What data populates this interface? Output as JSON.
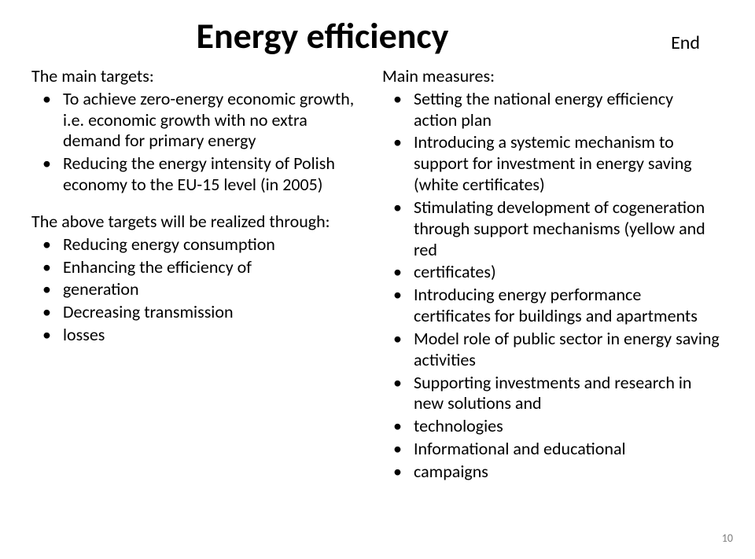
{
  "title": "Energy efficiency",
  "end_label": "End",
  "left": {
    "targets_lead": "The main targets:",
    "targets": [
      "To achieve zero-energy economic growth, i.e. economic growth with no extra demand for primary energy",
      "Reducing the energy intensity of Polish economy to the EU-15 level (in 2005)"
    ],
    "realized_lead": "The above targets will be realized through:",
    "realized": [
      "Reducing energy consumption",
      "Enhancing the efficiency of",
      "generation",
      "Decreasing transmission",
      "losses"
    ]
  },
  "right": {
    "measures_lead": "Main measures:",
    "measures": [
      "Setting the national energy efficiency action plan",
      "Introducing a systemic mechanism to support for investment in energy saving (white certificates)",
      "Stimulating development of cogeneration through support mechanisms (yellow and red",
      "certificates)",
      "Introducing energy performance certificates for buildings and apartments",
      "Model role of public sector in energy saving activities",
      "Supporting investments and research in new solutions and",
      "technologies",
      "Informational and educational",
      "campaigns"
    ]
  },
  "page_number": "10"
}
